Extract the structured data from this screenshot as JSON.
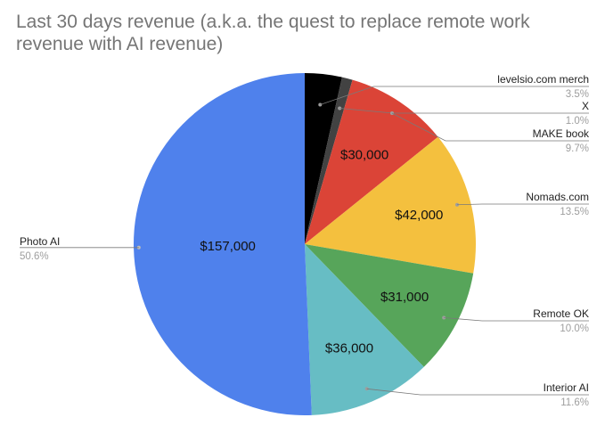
{
  "title_line1": "Last 30 days revenue (a.k.a. the quest to replace remote work",
  "title_line2": "revenue with AI revenue)",
  "chart_data": {
    "type": "pie",
    "title": "Last 30 days revenue (a.k.a. the quest to replace remote work revenue with AI revenue)",
    "legend": "labels beside slices",
    "slices": [
      {
        "name": "levelsio.com merch",
        "percent": 3.5,
        "value_label": "",
        "color": "#000000"
      },
      {
        "name": "X",
        "percent": 1.0,
        "value_label": "",
        "color": "#424242"
      },
      {
        "name": "MAKE book",
        "percent": 9.7,
        "value_label": "$30,000",
        "color": "#db4437"
      },
      {
        "name": "Nomads.com",
        "percent": 13.5,
        "value_label": "$42,000",
        "color": "#f4c03e"
      },
      {
        "name": "Remote OK",
        "percent": 10.0,
        "value_label": "$31,000",
        "color": "#57a55a"
      },
      {
        "name": "Interior AI",
        "percent": 11.6,
        "value_label": "$36,000",
        "color": "#67bdc4"
      },
      {
        "name": "Photo AI",
        "percent": 50.6,
        "value_label": "$157,000",
        "color": "#4f81ec"
      }
    ]
  }
}
